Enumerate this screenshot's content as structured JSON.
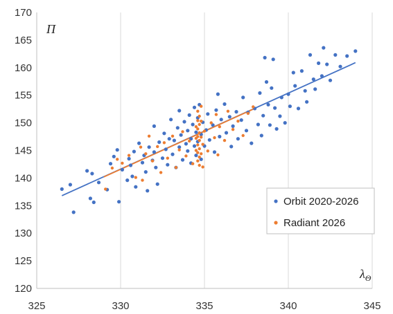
{
  "chart_data": {
    "type": "scatter",
    "xlabel": "λ",
    "xlabel_sub": "Θ",
    "ylabel": "Π",
    "xlim": [
      325,
      345
    ],
    "ylim": [
      120,
      170
    ],
    "xticks": [
      "325",
      "330",
      "335",
      "340",
      "345"
    ],
    "yticks": [
      "120",
      "125",
      "130",
      "135",
      "140",
      "145",
      "150",
      "155",
      "160",
      "165",
      "170"
    ],
    "grid": "vertical-major",
    "legend_position": "bottom-right",
    "series": [
      {
        "name": "Orbit 2020-2026",
        "color": "#4472c4",
        "points": [
          [
            326.5,
            138.0
          ],
          [
            327.0,
            138.8
          ],
          [
            327.2,
            133.8
          ],
          [
            328.0,
            141.3
          ],
          [
            328.3,
            140.8
          ],
          [
            328.2,
            136.3
          ],
          [
            328.4,
            135.6
          ],
          [
            328.7,
            139.2
          ],
          [
            329.2,
            137.9
          ],
          [
            329.4,
            142.6
          ],
          [
            329.6,
            143.9
          ],
          [
            329.8,
            145.1
          ],
          [
            329.9,
            135.7
          ],
          [
            330.1,
            141.5
          ],
          [
            330.4,
            139.6
          ],
          [
            330.5,
            143.5
          ],
          [
            330.6,
            142.3
          ],
          [
            330.7,
            140.3
          ],
          [
            330.8,
            144.8
          ],
          [
            330.9,
            138.4
          ],
          [
            331.1,
            146.3
          ],
          [
            331.3,
            142.8
          ],
          [
            331.4,
            144.1
          ],
          [
            331.5,
            141.1
          ],
          [
            331.6,
            137.7
          ],
          [
            331.7,
            145.6
          ],
          [
            331.9,
            143.2
          ],
          [
            332.0,
            149.4
          ],
          [
            332.0,
            144.7
          ],
          [
            332.1,
            141.9
          ],
          [
            332.2,
            138.9
          ],
          [
            332.3,
            146.5
          ],
          [
            332.5,
            143.6
          ],
          [
            332.6,
            148.1
          ],
          [
            332.7,
            145.2
          ],
          [
            332.8,
            142.4
          ],
          [
            332.9,
            147.1
          ],
          [
            333.0,
            150.6
          ],
          [
            333.1,
            144.3
          ],
          [
            333.2,
            146.8
          ],
          [
            333.3,
            141.9
          ],
          [
            333.4,
            149.1
          ],
          [
            333.5,
            145.6
          ],
          [
            333.5,
            152.2
          ],
          [
            333.6,
            147.8
          ],
          [
            333.7,
            143.3
          ],
          [
            333.8,
            150.2
          ],
          [
            333.9,
            146.2
          ],
          [
            334.0,
            148.6
          ],
          [
            334.0,
            144.9
          ],
          [
            334.1,
            151.4
          ],
          [
            334.2,
            147.1
          ],
          [
            334.2,
            142.7
          ],
          [
            334.3,
            149.7
          ],
          [
            334.4,
            145.8
          ],
          [
            334.4,
            152.8
          ],
          [
            334.5,
            148.3
          ],
          [
            334.5,
            144.1
          ],
          [
            334.6,
            150.9
          ],
          [
            334.6,
            146.6
          ],
          [
            334.7,
            153.3
          ],
          [
            334.8,
            147.9
          ],
          [
            334.8,
            143.4
          ],
          [
            334.9,
            150.1
          ],
          [
            335.0,
            145.8
          ],
          [
            335.1,
            148.7
          ],
          [
            335.2,
            151.6
          ],
          [
            335.3,
            146.9
          ],
          [
            335.5,
            149.6
          ],
          [
            335.6,
            144.7
          ],
          [
            335.7,
            152.3
          ],
          [
            335.8,
            155.2
          ],
          [
            335.9,
            147.5
          ],
          [
            336.0,
            150.6
          ],
          [
            336.2,
            153.4
          ],
          [
            336.3,
            148.2
          ],
          [
            336.5,
            151.1
          ],
          [
            336.6,
            145.7
          ],
          [
            336.7,
            149.4
          ],
          [
            336.9,
            152.0
          ],
          [
            337.0,
            147.1
          ],
          [
            337.2,
            150.5
          ],
          [
            337.3,
            154.6
          ],
          [
            337.5,
            148.6
          ],
          [
            337.6,
            151.9
          ],
          [
            337.8,
            146.3
          ],
          [
            338.0,
            152.6
          ],
          [
            338.2,
            149.7
          ],
          [
            338.3,
            155.4
          ],
          [
            338.4,
            147.7
          ],
          [
            338.5,
            151.3
          ],
          [
            338.6,
            161.8
          ],
          [
            338.7,
            157.4
          ],
          [
            338.8,
            153.3
          ],
          [
            338.9,
            149.6
          ],
          [
            339.0,
            156.3
          ],
          [
            339.1,
            161.5
          ],
          [
            339.2,
            152.7
          ],
          [
            339.3,
            148.9
          ],
          [
            339.5,
            151.2
          ],
          [
            339.6,
            154.6
          ],
          [
            339.8,
            150.0
          ],
          [
            340.0,
            155.2
          ],
          [
            340.1,
            153.0
          ],
          [
            340.3,
            159.1
          ],
          [
            340.4,
            156.7
          ],
          [
            340.6,
            152.6
          ],
          [
            340.8,
            159.4
          ],
          [
            341.0,
            155.8
          ],
          [
            341.1,
            153.8
          ],
          [
            341.3,
            162.3
          ],
          [
            341.5,
            157.9
          ],
          [
            341.6,
            156.1
          ],
          [
            341.8,
            160.8
          ],
          [
            342.0,
            158.5
          ],
          [
            342.1,
            163.6
          ],
          [
            342.3,
            160.6
          ],
          [
            342.5,
            157.7
          ],
          [
            342.8,
            162.3
          ],
          [
            343.1,
            160.2
          ],
          [
            343.5,
            162.1
          ],
          [
            344.0,
            163.0
          ]
        ]
      },
      {
        "name": "Radiant 2026",
        "color": "#ed7d31",
        "points": [
          [
            329.1,
            138.0
          ],
          [
            329.5,
            141.8
          ],
          [
            329.8,
            143.4
          ],
          [
            330.1,
            142.7
          ],
          [
            330.5,
            144.1
          ],
          [
            330.9,
            140.1
          ],
          [
            331.2,
            145.6
          ],
          [
            331.3,
            139.6
          ],
          [
            331.5,
            144.4
          ],
          [
            331.7,
            147.6
          ],
          [
            331.9,
            143.1
          ],
          [
            332.2,
            145.7
          ],
          [
            332.4,
            141.0
          ],
          [
            332.6,
            146.4
          ],
          [
            332.8,
            143.6
          ],
          [
            333.1,
            147.6
          ],
          [
            333.3,
            141.9
          ],
          [
            333.5,
            145.1
          ],
          [
            333.7,
            148.4
          ],
          [
            333.9,
            144.0
          ],
          [
            334.1,
            146.7
          ],
          [
            334.3,
            142.6
          ],
          [
            334.5,
            145.0
          ],
          [
            334.5,
            147.2
          ],
          [
            334.5,
            149.3
          ],
          [
            334.6,
            143.1
          ],
          [
            334.6,
            144.6
          ],
          [
            334.6,
            146.0
          ],
          [
            334.6,
            147.5
          ],
          [
            334.6,
            148.9
          ],
          [
            334.6,
            150.4
          ],
          [
            334.6,
            152.1
          ],
          [
            334.7,
            142.3
          ],
          [
            334.7,
            143.8
          ],
          [
            334.7,
            145.3
          ],
          [
            334.7,
            146.8
          ],
          [
            334.7,
            148.2
          ],
          [
            334.7,
            149.7
          ],
          [
            334.7,
            151.2
          ],
          [
            334.8,
            144.4
          ],
          [
            334.8,
            147.4
          ],
          [
            334.8,
            150.3
          ],
          [
            334.8,
            153.0
          ],
          [
            334.9,
            142.0
          ],
          [
            334.9,
            146.1
          ],
          [
            335.0,
            148.5
          ],
          [
            335.2,
            144.9
          ],
          [
            335.4,
            150.0
          ],
          [
            335.6,
            147.3
          ],
          [
            335.7,
            151.5
          ],
          [
            335.8,
            144.2
          ],
          [
            335.9,
            149.3
          ],
          [
            336.2,
            146.8
          ],
          [
            336.4,
            152.1
          ],
          [
            336.7,
            148.8
          ],
          [
            337.0,
            150.3
          ],
          [
            337.3,
            147.7
          ],
          [
            337.6,
            151.7
          ],
          [
            337.9,
            152.9
          ]
        ]
      }
    ],
    "trendlines": [
      {
        "series": "Orbit 2020-2026",
        "color": "#4472c4",
        "x": [
          326.5,
          344.0
        ],
        "y": [
          136.8,
          160.9
        ]
      },
      {
        "series": "Radiant 2026",
        "color": "#ed7d31",
        "x": [
          329.0,
          338.0
        ],
        "y": [
          140.2,
          152.6
        ]
      }
    ]
  }
}
